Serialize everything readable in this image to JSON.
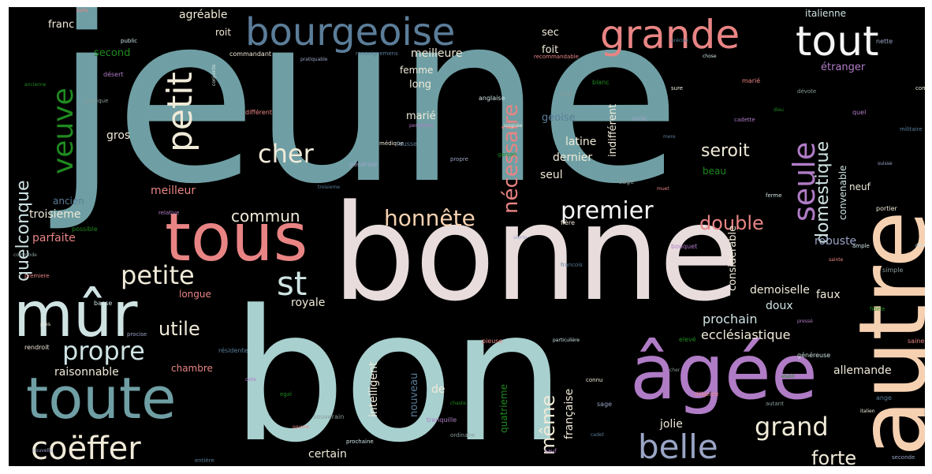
{
  "palette": {
    "teal": "#6f9fa4",
    "aqua": "#a8d0cf",
    "pink": "#e8dcdc",
    "salmon": "#e98484",
    "purple": "#b07cc6",
    "slate": "#5b7d99",
    "peach": "#f6d1b1",
    "green": "#1f8a1f",
    "cream": "#f0ead8",
    "pale": "#cfe3e3",
    "lilac": "#9aa5c6",
    "dim": "#8a9a9a",
    "white": "#f5f5f5"
  },
  "words": {
    "jeune": "jeune",
    "bonne": "bonne",
    "bon": "bon",
    "autre": "autre",
    "agee": "âgée",
    "tous": "tous",
    "toute": "toute",
    "mur": "mûr",
    "bourgeoise": "bourgeoise",
    "grande": "grande",
    "tout": "tout",
    "petit": "petit",
    "veuve": "veuve",
    "seule": "seule",
    "coeffer": "coëffer",
    "belle": "belle",
    "petite": "petite",
    "propre": "propre",
    "st": "st",
    "cher": "cher",
    "honnete": "honnête",
    "premier": "premier",
    "grand": "grand",
    "double": "double",
    "necessaire": "nécessaire",
    "domestique": "domestique",
    "seroit": "seroit",
    "forte": "forte",
    "meme": "même",
    "utile": "utile",
    "commun": "commun",
    "quelconque": "quelconque",
    "ecclesiastique": "ecclésiastique",
    "prochain": "prochain",
    "demoiselle": "demoiselle",
    "robuste": "robuste",
    "allemande": "allemande",
    "raisonnable": "raisonnable",
    "troisieme": "troisieme",
    "meilleur": "meilleur",
    "latine": "latine",
    "dernier": "dernier",
    "seul": "seul",
    "gros": "gros",
    "parfaite": "parfaite",
    "longue": "longue",
    "royale": "royale",
    "doux": "doux",
    "faux": "faux",
    "jolie": "jolie",
    "certain": "certain",
    "intelligent": "intelligent",
    "francaise": "française",
    "nouveau": "nouveau",
    "de": "de",
    "chambre": "chambre",
    "meilleure": "meilleure",
    "agreable": "agréable",
    "italienne": "italienne",
    "etranger": "étranger",
    "second": "second",
    "franc": "franc",
    "long": "long",
    "marie": "marié",
    "foit": "foit",
    "sec": "sec",
    "roit": "roit",
    "femme": "femme",
    "geoise": "geoise",
    "ancien": "ancien",
    "considerable": "considérable",
    "indifferent": "indifférent",
    "convenable": "convenable",
    "neuf": "neuf",
    "quatrieme": "quatrieme",
    "beau": "beau"
  },
  "small_words": [
    "belle",
    "public",
    "commandant",
    "pratiquable",
    "renseignemens",
    "désert",
    "ancienne",
    "publique",
    "différent",
    "conjointe",
    "médique",
    "générale",
    "troisieme",
    "relative",
    "possible",
    "commode",
    "premiere",
    "basse",
    "pres",
    "procise",
    "résidente",
    "celle",
    "egal",
    "souverain",
    "pauvre",
    "prochaine",
    "rendroit",
    "nouvelle",
    "entière",
    "tranquille",
    "chaste",
    "ordinaire",
    "pieuse",
    "particulière",
    "connu",
    "sage",
    "cadet",
    "sauf",
    "elevé",
    "cher",
    "diligente",
    "généreuse",
    "italien",
    "seconde",
    "ange",
    "pressé",
    "fidèle",
    "simple",
    "sainte",
    "ample",
    "portier",
    "suisse",
    "militaire",
    "quel",
    "dieu",
    "dévote",
    "marié",
    "chose",
    "sure",
    "laide",
    "mere",
    "cadette",
    "blanc",
    "tique",
    "recommandable",
    "anglaise",
    "soignée",
    "propre",
    "fausse",
    "personnes",
    "garçon",
    "sage",
    "muet",
    "ferme",
    "fière",
    "alerte",
    "francois",
    "bouquet",
    "etabli",
    "autant",
    "saine",
    "dévote",
    "commune",
    "nette",
    "précise"
  ]
}
